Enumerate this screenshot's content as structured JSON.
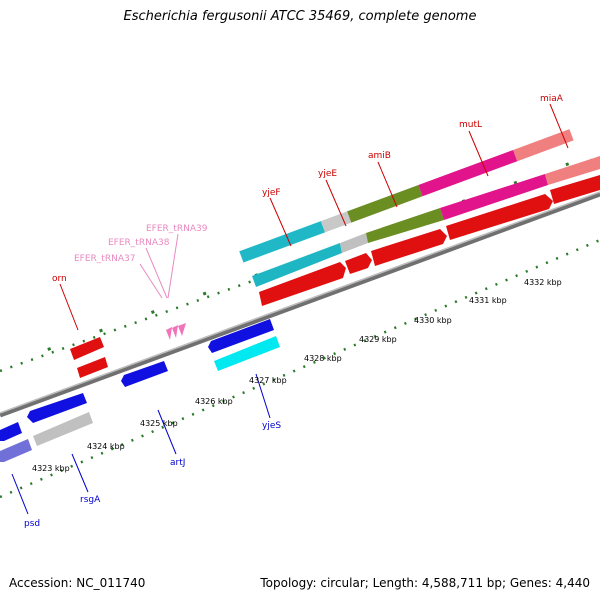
{
  "title": "Escherichia fergusonii ATCC 35469, complete genome",
  "footer": {
    "accession": "Accession: NC_011740",
    "topology": "Topology: circular; Length: 4,588,711 bp; Genes: 4,440"
  },
  "colors": {
    "backbone": "#8a8a8a",
    "ticks": "#2a7a2a",
    "forward_label": "#cc0000",
    "reverse_label": "#0000cc",
    "trna_label": "#e88ac0"
  },
  "kbp_labels": [
    "4323 kbp",
    "4324 kbp",
    "4325 kbp",
    "4326 kbp",
    "4327 kbp",
    "4328 kbp",
    "4329 kbp",
    "4330 kbp",
    "4331 kbp",
    "4332 kbp"
  ],
  "forward_genes": [
    "orn",
    "yjeF",
    "yjeE",
    "amiB",
    "mutL",
    "miaA"
  ],
  "trna_genes": [
    "EFER_tRNA37",
    "EFER_tRNA38",
    "EFER_tRNA39"
  ],
  "reverse_genes": [
    "psd",
    "rsgA",
    "artJ",
    "yjeS"
  ]
}
